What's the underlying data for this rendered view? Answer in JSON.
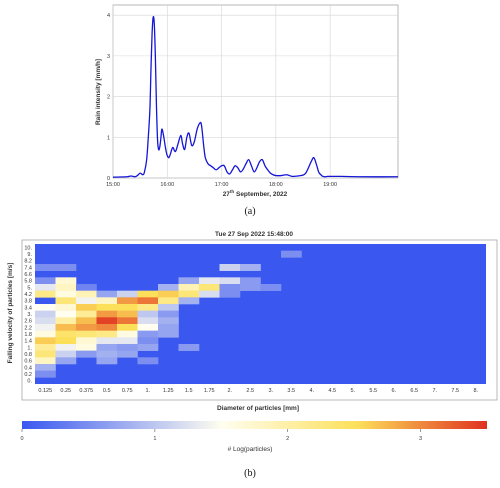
{
  "chart_data": [
    {
      "type": "line",
      "caption": "(a)",
      "xlabel_day": "27",
      "xlabel_suffix": "th",
      "xlabel_rest": " September, 2022",
      "ylabel": "Rain intensity [mm/h]",
      "x_ticks": [
        "15:00",
        "16:00",
        "17:00",
        "18:00",
        "19:00"
      ],
      "y_ticks": [
        "0",
        "1",
        "2",
        "3",
        "4"
      ],
      "xlim_hours": [
        15.0,
        20.25
      ],
      "ylim": [
        0,
        4.25
      ],
      "grid": true,
      "line_color": "#1515d8",
      "series": [
        {
          "x_hours": [
            15.0,
            15.25,
            15.33,
            15.4,
            15.45,
            15.5,
            15.55,
            15.58,
            15.62,
            15.65,
            15.68,
            15.7,
            15.72,
            15.74,
            15.76,
            15.78,
            15.8,
            15.82,
            15.84,
            15.86,
            15.88,
            15.9,
            15.93,
            15.96,
            15.98,
            16.0,
            16.03,
            16.06,
            16.1,
            16.15,
            16.2,
            16.25,
            16.28,
            16.32,
            16.36,
            16.4,
            16.45,
            16.5,
            16.55,
            16.6,
            16.63,
            16.67,
            16.7,
            16.75,
            16.8,
            16.85,
            16.9,
            16.95,
            17.0,
            17.05,
            17.1,
            17.15,
            17.2,
            17.25,
            17.3,
            17.35,
            17.4,
            17.45,
            17.5,
            17.55,
            17.6,
            17.65,
            17.7,
            17.75,
            17.8,
            17.85,
            17.9,
            17.95,
            18.0,
            18.1,
            18.2,
            18.3,
            18.4,
            18.5,
            18.55,
            18.6,
            18.65,
            18.7,
            18.75,
            18.78,
            18.8,
            18.83,
            18.85,
            18.9,
            18.95,
            19.0,
            19.2,
            19.5,
            20.25
          ],
          "y_rain_mm_h": [
            0.02,
            0.03,
            0.05,
            0.03,
            0.06,
            0.12,
            0.08,
            0.15,
            0.45,
            1.0,
            1.7,
            2.7,
            3.55,
            3.95,
            3.8,
            3.0,
            1.8,
            0.95,
            0.7,
            0.75,
            0.95,
            1.2,
            1.05,
            0.8,
            0.65,
            0.55,
            0.5,
            0.6,
            0.75,
            0.65,
            0.85,
            1.05,
            0.85,
            0.7,
            1.0,
            1.1,
            0.8,
            0.9,
            1.2,
            1.35,
            1.3,
            0.8,
            0.5,
            0.35,
            0.3,
            0.25,
            0.2,
            0.25,
            0.3,
            0.3,
            0.15,
            0.1,
            0.2,
            0.3,
            0.25,
            0.15,
            0.22,
            0.35,
            0.45,
            0.3,
            0.15,
            0.25,
            0.4,
            0.45,
            0.3,
            0.2,
            0.12,
            0.08,
            0.06,
            0.06,
            0.08,
            0.04,
            0.05,
            0.07,
            0.12,
            0.25,
            0.4,
            0.5,
            0.32,
            0.18,
            0.12,
            0.08,
            0.05,
            0.03,
            0.04,
            0.04,
            0.04,
            0.03,
            0.03
          ]
        }
      ]
    },
    {
      "type": "heatmap",
      "caption": "(b)",
      "title": "Tue 27 Sep 2022 15:48:00",
      "xlabel": "Diameter of particles [mm]",
      "ylabel": "Falling velocity of particles [m/s]",
      "x_ticks": [
        "0.125",
        "0.25",
        "0.375",
        "0.5",
        "0.75",
        "1.",
        "1.25",
        "1.5",
        "1.75",
        "2.",
        "2.5",
        "3.",
        "3.5",
        "4.",
        "4.5",
        "5.",
        "5.5",
        "6.",
        "6.5",
        "7.",
        "7.5",
        "8."
      ],
      "y_ticks": [
        "10.",
        "9.",
        "8.2",
        "7.4",
        "6.6",
        "5.8",
        "5.",
        "4.2",
        "3.8",
        "3.4",
        "3.",
        "2.6",
        "2.2",
        "1.8",
        "1.4",
        "1.",
        "0.8",
        "0.6",
        "0.4",
        "0.2",
        "0."
      ],
      "background_color": "#3a58f0",
      "colorbar": {
        "label": "# Log(particles)",
        "ticks": [
          "0",
          "1",
          "2",
          "3"
        ],
        "min": 0,
        "max": 3.5,
        "colors": [
          "#3a58f0",
          "#fffef0",
          "#fde05a",
          "#e03020"
        ]
      },
      "cells": [
        {
          "d": 12,
          "v": 1,
          "val": 0.5
        },
        {
          "d": 0,
          "v": 3,
          "val": 0.5
        },
        {
          "d": 1,
          "v": 3,
          "val": 0.5
        },
        {
          "d": 9,
          "v": 3,
          "val": 1.1
        },
        {
          "d": 10,
          "v": 3,
          "val": 0.8
        },
        {
          "d": 0,
          "v": 5,
          "val": 0.5
        },
        {
          "d": 1,
          "v": 5,
          "val": 1.7
        },
        {
          "d": 7,
          "v": 5,
          "val": 0.7
        },
        {
          "d": 8,
          "v": 5,
          "val": 1.3
        },
        {
          "d": 9,
          "v": 5,
          "val": 1.2
        },
        {
          "d": 10,
          "v": 5,
          "val": 0.6
        },
        {
          "d": 0,
          "v": 6,
          "val": 1.3
        },
        {
          "d": 1,
          "v": 6,
          "val": 1.8
        },
        {
          "d": 2,
          "v": 6,
          "val": 0.4
        },
        {
          "d": 6,
          "v": 6,
          "val": 0.8
        },
        {
          "d": 7,
          "v": 6,
          "val": 1.9
        },
        {
          "d": 8,
          "v": 6,
          "val": 2.3
        },
        {
          "d": 9,
          "v": 6,
          "val": 0.5
        },
        {
          "d": 10,
          "v": 6,
          "val": 0.6
        },
        {
          "d": 11,
          "v": 6,
          "val": 0.5
        },
        {
          "d": 0,
          "v": 7,
          "val": 2.2
        },
        {
          "d": 1,
          "v": 7,
          "val": 1.6
        },
        {
          "d": 2,
          "v": 7,
          "val": 1.9
        },
        {
          "d": 3,
          "v": 7,
          "val": 0.7
        },
        {
          "d": 4,
          "v": 7,
          "val": 1.1
        },
        {
          "d": 5,
          "v": 7,
          "val": 2.5
        },
        {
          "d": 6,
          "v": 7,
          "val": 2.6
        },
        {
          "d": 7,
          "v": 7,
          "val": 2.3
        },
        {
          "d": 8,
          "v": 7,
          "val": 1.2
        },
        {
          "d": 9,
          "v": 7,
          "val": 0.5
        },
        {
          "d": 1,
          "v": 8,
          "val": 2.3
        },
        {
          "d": 2,
          "v": 8,
          "val": 1.4
        },
        {
          "d": 3,
          "v": 8,
          "val": 1.8
        },
        {
          "d": 4,
          "v": 8,
          "val": 2.9
        },
        {
          "d": 5,
          "v": 8,
          "val": 3.1
        },
        {
          "d": 6,
          "v": 8,
          "val": 2.2
        },
        {
          "d": 7,
          "v": 8,
          "val": 0.8
        },
        {
          "d": 0,
          "v": 9,
          "val": 1.5
        },
        {
          "d": 1,
          "v": 9,
          "val": 1.7
        },
        {
          "d": 2,
          "v": 9,
          "val": 2.6
        },
        {
          "d": 3,
          "v": 9,
          "val": 2.5
        },
        {
          "d": 4,
          "v": 9,
          "val": 2.5
        },
        {
          "d": 5,
          "v": 9,
          "val": 2.2
        },
        {
          "d": 6,
          "v": 9,
          "val": 1.0
        },
        {
          "d": 0,
          "v": 10,
          "val": 1.1
        },
        {
          "d": 1,
          "v": 10,
          "val": 1.5
        },
        {
          "d": 2,
          "v": 10,
          "val": 2.1
        },
        {
          "d": 3,
          "v": 10,
          "val": 2.9
        },
        {
          "d": 4,
          "v": 10,
          "val": 2.7
        },
        {
          "d": 5,
          "v": 10,
          "val": 1.0
        },
        {
          "d": 6,
          "v": 10,
          "val": 0.6
        },
        {
          "d": 0,
          "v": 11,
          "val": 1.2
        },
        {
          "d": 1,
          "v": 11,
          "val": 2.0
        },
        {
          "d": 2,
          "v": 11,
          "val": 2.7
        },
        {
          "d": 3,
          "v": 11,
          "val": 3.4
        },
        {
          "d": 4,
          "v": 11,
          "val": 3.1
        },
        {
          "d": 5,
          "v": 11,
          "val": 1.2
        },
        {
          "d": 6,
          "v": 11,
          "val": 0.8
        },
        {
          "d": 0,
          "v": 12,
          "val": 1.4
        },
        {
          "d": 1,
          "v": 12,
          "val": 2.7
        },
        {
          "d": 2,
          "v": 12,
          "val": 2.9
        },
        {
          "d": 3,
          "v": 12,
          "val": 3.0
        },
        {
          "d": 4,
          "v": 12,
          "val": 2.5
        },
        {
          "d": 5,
          "v": 12,
          "val": 1.5
        },
        {
          "d": 6,
          "v": 12,
          "val": 0.7
        },
        {
          "d": 0,
          "v": 13,
          "val": 1.6
        },
        {
          "d": 1,
          "v": 13,
          "val": 2.4
        },
        {
          "d": 2,
          "v": 13,
          "val": 2.3
        },
        {
          "d": 3,
          "v": 13,
          "val": 2.2
        },
        {
          "d": 4,
          "v": 13,
          "val": 1.6
        },
        {
          "d": 5,
          "v": 13,
          "val": 0.6
        },
        {
          "d": 6,
          "v": 13,
          "val": 0.7
        },
        {
          "d": 0,
          "v": 14,
          "val": 2.6
        },
        {
          "d": 1,
          "v": 14,
          "val": 2.5
        },
        {
          "d": 2,
          "v": 14,
          "val": 1.7
        },
        {
          "d": 3,
          "v": 14,
          "val": 1.3
        },
        {
          "d": 4,
          "v": 14,
          "val": 1.3
        },
        {
          "d": 5,
          "v": 14,
          "val": 0.5
        },
        {
          "d": 0,
          "v": 15,
          "val": 2.1
        },
        {
          "d": 1,
          "v": 15,
          "val": 1.4
        },
        {
          "d": 2,
          "v": 15,
          "val": 1.6
        },
        {
          "d": 3,
          "v": 15,
          "val": 0.7
        },
        {
          "d": 4,
          "v": 15,
          "val": 0.6
        },
        {
          "d": 5,
          "v": 15,
          "val": 0.7
        },
        {
          "d": 7,
          "v": 15,
          "val": 0.6
        },
        {
          "d": 0,
          "v": 16,
          "val": 2.3
        },
        {
          "d": 1,
          "v": 16,
          "val": 1.1
        },
        {
          "d": 2,
          "v": 16,
          "val": 0.6
        },
        {
          "d": 3,
          "v": 16,
          "val": 0.8
        },
        {
          "d": 4,
          "v": 16,
          "val": 0.7
        },
        {
          "d": 0,
          "v": 17,
          "val": 1.8
        },
        {
          "d": 1,
          "v": 17,
          "val": 0.7
        },
        {
          "d": 3,
          "v": 17,
          "val": 0.7
        },
        {
          "d": 5,
          "v": 17,
          "val": 0.5
        },
        {
          "d": 0,
          "v": 18,
          "val": 0.8
        },
        {
          "d": 0,
          "v": 19,
          "val": 0.5
        }
      ]
    }
  ]
}
